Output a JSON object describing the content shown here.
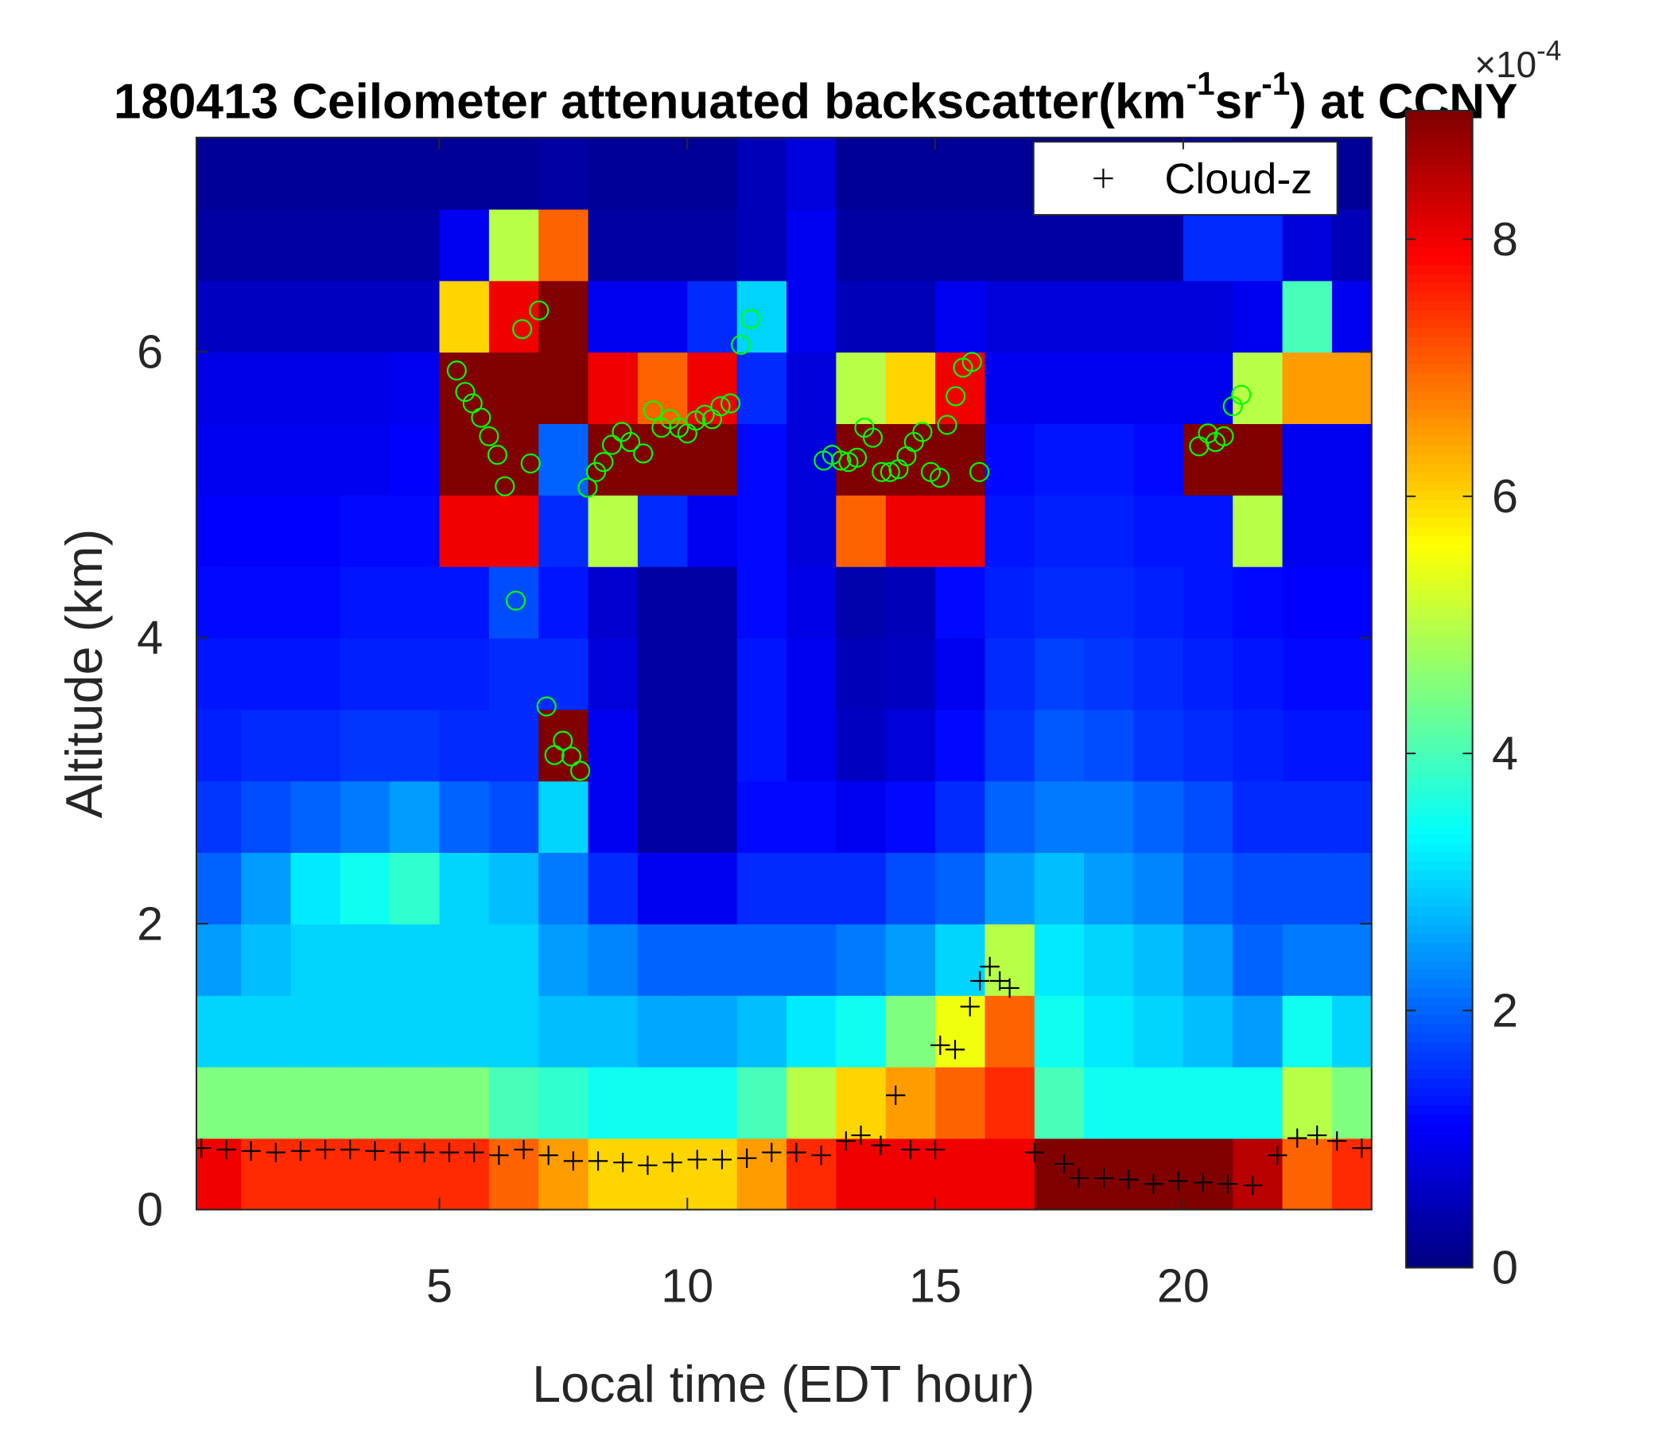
{
  "chart_data": {
    "type": "heatmap",
    "title": [
      "180413 Ceilometer attenuated backscatter(km",
      "-1",
      "sr",
      "-1",
      ") at CCNY"
    ],
    "x_label": "Local time (EDT hour)",
    "y_label": "Altitude (km)",
    "xlim": [
      0.1,
      23.8
    ],
    "ylim": [
      0,
      7.5
    ],
    "xticks": [
      5,
      10,
      15,
      20
    ],
    "yticks": [
      0,
      2,
      4,
      6
    ],
    "colormap": "jet",
    "clim": [
      0,
      9
    ],
    "colorbar_ticks": [
      0,
      2,
      4,
      6,
      8
    ],
    "colorbar_multiplier": "×10",
    "colorbar_exponent": "-4",
    "legend": "northeast",
    "xbins": [
      0,
      1,
      2,
      3,
      4,
      5,
      6,
      7,
      8,
      9,
      10,
      11,
      12,
      13,
      14,
      15,
      16,
      17,
      18,
      19,
      20,
      21,
      22,
      23,
      24
    ],
    "ybins": [
      0,
      0.5,
      1,
      1.5,
      2,
      2.5,
      3,
      3.5,
      4,
      4.5,
      5,
      5.5,
      6,
      6.5,
      7,
      7.5
    ],
    "z": [
      [
        8,
        7.5,
        7.5,
        7.5,
        7.5,
        7.5,
        7,
        6.5,
        6,
        6,
        6,
        6.5,
        7.5,
        8,
        8,
        8,
        8,
        9,
        9,
        9,
        9,
        8.5,
        7,
        7.5
      ],
      [
        4.5,
        4.5,
        4.5,
        4.5,
        4.5,
        4.5,
        4,
        3.8,
        3.5,
        3.5,
        3.5,
        4,
        5,
        6,
        6.5,
        7,
        7.5,
        4,
        3.5,
        3.5,
        3.5,
        3.5,
        5,
        4.5
      ],
      [
        3,
        3,
        3,
        3,
        3,
        3,
        3,
        2.8,
        2.8,
        2.6,
        2.6,
        2.8,
        3.2,
        3.5,
        4.5,
        5.5,
        7,
        3.5,
        3.2,
        3,
        2.8,
        2.5,
        3.5,
        3
      ],
      [
        2.5,
        2.8,
        3,
        3,
        3,
        3,
        3,
        2.5,
        2.3,
        2,
        2,
        2,
        2,
        2.2,
        2.5,
        3,
        5,
        3.2,
        3,
        2.8,
        2.5,
        2,
        2.2,
        2.2
      ],
      [
        2,
        2.5,
        3.2,
        3.5,
        3.8,
        3,
        2.8,
        2.2,
        1.5,
        1,
        1,
        1.5,
        1.5,
        1.5,
        1.8,
        2,
        2.5,
        2.8,
        2.5,
        2.3,
        2,
        1.8,
        1.8,
        1.8
      ],
      [
        1.6,
        1.8,
        2,
        2.2,
        2.5,
        2,
        1.8,
        3,
        1,
        0.3,
        0.3,
        1.2,
        1.2,
        1,
        1.2,
        1.5,
        2,
        2.2,
        2.2,
        2,
        1.8,
        1.5,
        1.5,
        1.5
      ],
      [
        1.4,
        1.5,
        1.5,
        1.6,
        1.6,
        1.5,
        1.5,
        9,
        1,
        0.3,
        0.3,
        1.3,
        1,
        0.6,
        0.8,
        1.2,
        1.6,
        1.9,
        1.8,
        1.6,
        1.5,
        1.4,
        1.3,
        1.3
      ],
      [
        1.3,
        1.3,
        1.3,
        1.4,
        1.4,
        1.4,
        1.5,
        1.5,
        0.8,
        0.3,
        0.3,
        1.3,
        1,
        0.5,
        0.6,
        1,
        1.5,
        1.7,
        1.6,
        1.5,
        1.4,
        1.3,
        1.2,
        1.2
      ],
      [
        1.2,
        1.2,
        1.2,
        1.3,
        1.3,
        1.3,
        1.8,
        1.3,
        0.7,
        0.3,
        0.3,
        1.2,
        0.9,
        0.4,
        0.5,
        1.2,
        1.4,
        1.5,
        1.5,
        1.4,
        1.3,
        1.2,
        1.1,
        1.1
      ],
      [
        1.1,
        1.1,
        1.1,
        1.2,
        1.2,
        8,
        8,
        1.5,
        5,
        1.5,
        1,
        1.2,
        0.8,
        7,
        8,
        8,
        1.3,
        1.4,
        1.4,
        1.3,
        1.3,
        5,
        1,
        1
      ],
      [
        1,
        1,
        1,
        1,
        1.1,
        9,
        9,
        2,
        9,
        9,
        9,
        1.2,
        0.8,
        9,
        9,
        9,
        1.2,
        1.3,
        1.3,
        1.2,
        9,
        9,
        1,
        1
      ],
      [
        0.9,
        0.9,
        0.9,
        0.9,
        1,
        9,
        9,
        9,
        8,
        7,
        8,
        1.5,
        0.8,
        5,
        6,
        8,
        1,
        1,
        1,
        1,
        1,
        5,
        6.5,
        6.5
      ],
      [
        0.6,
        0.6,
        0.6,
        0.6,
        0.6,
        6,
        8,
        9,
        1,
        1,
        1.5,
        3,
        1,
        0.5,
        0.5,
        1,
        0.8,
        0.8,
        0.8,
        0.8,
        0.8,
        1,
        4,
        1
      ],
      [
        0.3,
        0.3,
        0.3,
        0.3,
        0.3,
        1,
        5,
        7,
        0.3,
        0.3,
        0.3,
        0.5,
        1,
        0.3,
        0.3,
        0.3,
        0.3,
        0.3,
        0.3,
        0.3,
        1.5,
        1.5,
        0.8,
        0.5
      ],
      [
        0.2,
        0.2,
        0.2,
        0.2,
        0.2,
        0.2,
        0.2,
        0.3,
        0.2,
        0.2,
        0.2,
        0.5,
        0.8,
        0.2,
        0.2,
        0.2,
        0.2,
        0.2,
        0.2,
        0.2,
        0.5,
        0.2,
        0.2,
        0.2
      ]
    ],
    "series": [
      {
        "name": "Cloud-z",
        "marker": "+",
        "color": "#000000",
        "x": [
          0.2,
          0.7,
          1.2,
          1.7,
          2.2,
          2.7,
          3.2,
          3.7,
          4.2,
          4.7,
          5.2,
          5.7,
          6.2,
          6.7,
          7.2,
          7.7,
          8.2,
          8.7,
          9.2,
          9.7,
          10.2,
          10.7,
          11.2,
          11.7,
          12.2,
          12.7,
          13.2,
          13.5,
          13.9,
          14.2,
          14.5,
          15.0,
          15.1,
          15.4,
          15.7,
          15.9,
          16.1,
          16.3,
          16.5,
          17.0,
          17.6,
          17.9,
          18.4,
          18.9,
          19.4,
          19.9,
          20.4,
          20.9,
          21.4,
          21.9,
          22.3,
          22.7,
          23.1,
          23.6
        ],
        "values": [
          0.43,
          0.42,
          0.41,
          0.4,
          0.41,
          0.42,
          0.42,
          0.41,
          0.4,
          0.4,
          0.4,
          0.4,
          0.38,
          0.42,
          0.38,
          0.34,
          0.34,
          0.33,
          0.31,
          0.33,
          0.35,
          0.35,
          0.36,
          0.4,
          0.4,
          0.38,
          0.48,
          0.52,
          0.45,
          0.8,
          0.42,
          0.42,
          1.15,
          1.12,
          1.42,
          1.6,
          1.7,
          1.6,
          1.55,
          0.4,
          0.32,
          0.22,
          0.22,
          0.21,
          0.18,
          0.2,
          0.19,
          0.18,
          0.17,
          0.38,
          0.5,
          0.52,
          0.48,
          0.43
        ]
      },
      {
        "marker": "o",
        "color": "#00ff00",
        "x": [
          5.35,
          5.52,
          5.67,
          5.84,
          6.0,
          6.17,
          6.32,
          6.54,
          6.67,
          6.84,
          7.01,
          7.16,
          7.32,
          7.49,
          7.66,
          7.84,
          7.99,
          8.16,
          8.31,
          8.48,
          8.68,
          8.85,
          9.11,
          9.31,
          9.48,
          9.65,
          9.83,
          10.0,
          10.17,
          10.35,
          10.5,
          10.67,
          10.87,
          11.08,
          11.28,
          12.75,
          12.92,
          13.1,
          13.25,
          13.42,
          13.57,
          13.74,
          13.92,
          14.09,
          14.26,
          14.42,
          14.57,
          14.74,
          14.91,
          15.09,
          15.24,
          15.41,
          15.56,
          15.74,
          15.89,
          20.32,
          20.5,
          20.65,
          20.82,
          21.0,
          21.17
        ],
        "values": [
          5.87,
          5.72,
          5.64,
          5.54,
          5.41,
          5.28,
          5.06,
          4.26,
          6.16,
          5.22,
          6.29,
          3.52,
          3.18,
          3.28,
          3.17,
          3.07,
          5.05,
          5.16,
          5.23,
          5.35,
          5.44,
          5.37,
          5.29,
          5.59,
          5.47,
          5.53,
          5.47,
          5.43,
          5.52,
          5.56,
          5.53,
          5.62,
          5.64,
          6.05,
          6.23,
          5.24,
          5.28,
          5.24,
          5.23,
          5.26,
          5.47,
          5.4,
          5.16,
          5.16,
          5.18,
          5.27,
          5.37,
          5.44,
          5.16,
          5.12,
          5.49,
          5.69,
          5.89,
          5.93,
          5.16,
          5.34,
          5.43,
          5.37,
          5.41,
          5.62,
          5.7
        ]
      }
    ]
  }
}
